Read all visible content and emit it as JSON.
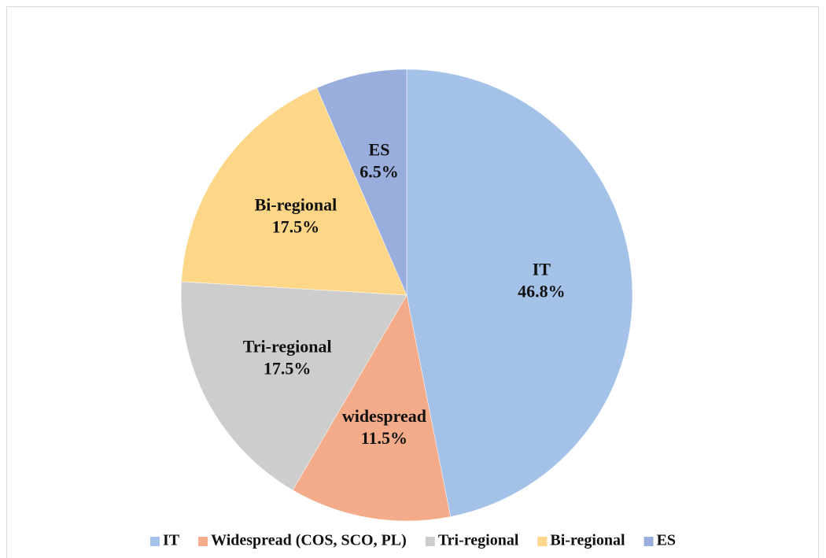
{
  "chart_data": {
    "type": "pie",
    "categories": [
      "IT",
      "Widespread (COS, SCO, PL)",
      "Tri-regional",
      "Bi-regional",
      "ES"
    ],
    "data_labels": [
      "IT",
      "widespread",
      "Tri-regional",
      "Bi-regional",
      "ES"
    ],
    "values": [
      46.8,
      11.5,
      17.5,
      17.5,
      6.5
    ],
    "value_labels": [
      "46.8%",
      "11.5%",
      "17.5%",
      "17.5%",
      "6.5%"
    ],
    "colors": [
      "#a4c2e8",
      "#f4ab8a",
      "#cdcdcd",
      "#fdd787",
      "#9aaede"
    ],
    "legend": "bottom"
  }
}
